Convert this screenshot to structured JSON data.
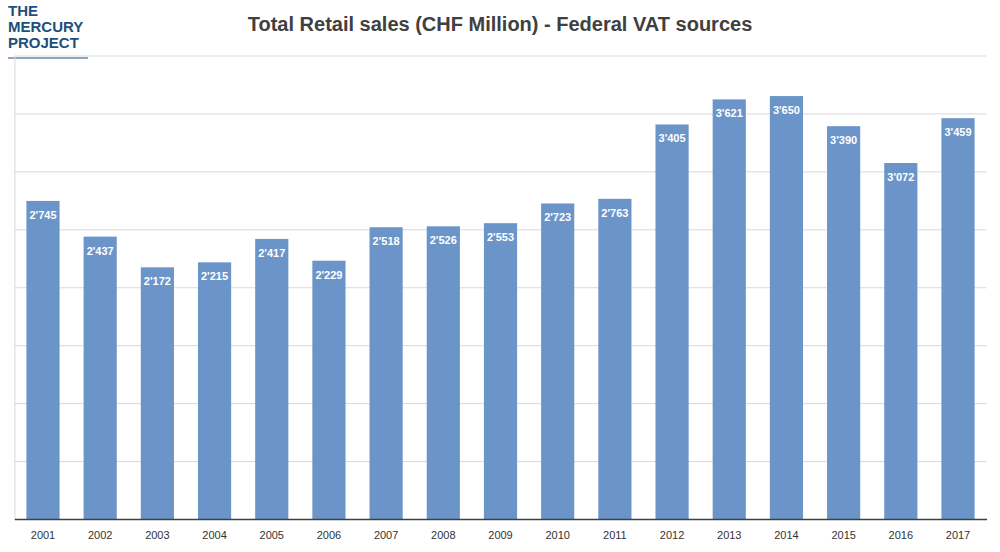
{
  "logo": {
    "lines": [
      "THE",
      "MERCURY",
      "PROJECT"
    ]
  },
  "chart_data": {
    "type": "bar",
    "title": "Total Retail sales (CHF Million) - Federal VAT sources",
    "categories": [
      "2001",
      "2002",
      "2003",
      "2004",
      "2005",
      "2006",
      "2007",
      "2008",
      "2009",
      "2010",
      "2011",
      "2012",
      "2013",
      "2014",
      "2015",
      "2016",
      "2017"
    ],
    "values": [
      2745,
      2437,
      2172,
      2215,
      2417,
      2229,
      2518,
      2526,
      2553,
      2723,
      2763,
      3405,
      3621,
      3650,
      3390,
      3072,
      3459
    ],
    "value_labels": [
      "2'745",
      "2'437",
      "2'172",
      "2'215",
      "2'417",
      "2'229",
      "2'518",
      "2'526",
      "2'553",
      "2'723",
      "2'763",
      "3'405",
      "3'621",
      "3'650",
      "3'390",
      "3'072",
      "3'459"
    ],
    "color": "#6b94c9",
    "ylim": [
      0,
      4000
    ],
    "yticks": [
      0,
      500,
      1000,
      1500,
      2000,
      2500,
      3000,
      3500,
      4000
    ],
    "grid": true,
    "data_labels": true,
    "tick_labels": "x"
  }
}
